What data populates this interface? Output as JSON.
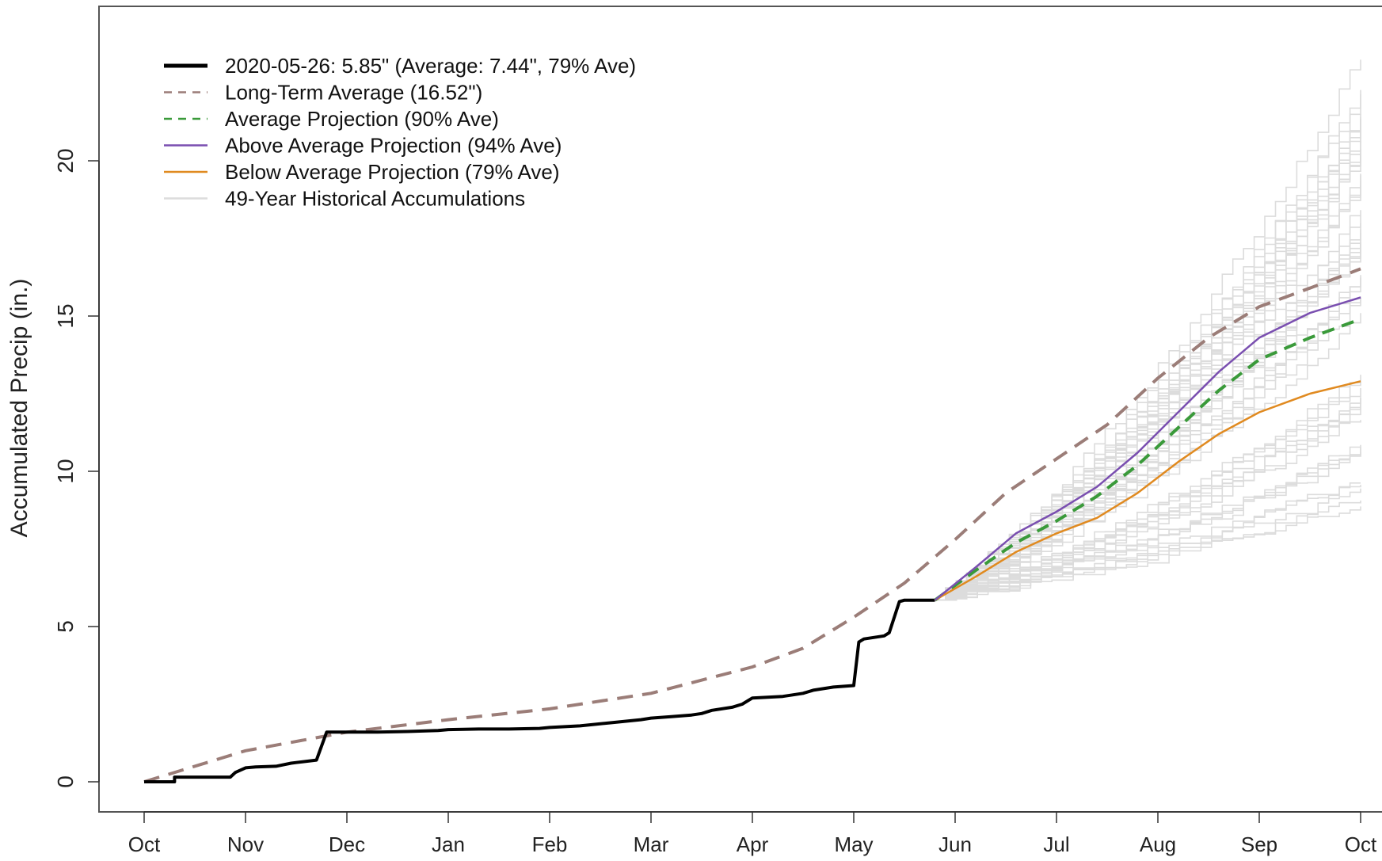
{
  "chart_data": {
    "type": "line",
    "title": "",
    "xlabel": "",
    "ylabel": "Accumulated Precip (in.)",
    "x_tick_labels": [
      "Oct",
      "Nov",
      "Dec",
      "Jan",
      "Feb",
      "Mar",
      "Apr",
      "May",
      "Jun",
      "Jul",
      "Aug",
      "Sep",
      "Oct"
    ],
    "y_ticks": [
      0,
      5,
      10,
      15,
      20
    ],
    "ylim": [
      -1,
      25
    ],
    "xlim_months": [
      -0.4,
      12.2
    ],
    "grid": false,
    "legend_position": "top-left",
    "legend": [
      {
        "label": "2020-05-26: 5.85\" (Average: 7.44\", 79% Ave)",
        "color": "#000000",
        "style": "solid-thick"
      },
      {
        "label": "Long-Term Average (16.52\")",
        "color": "#9b7d78",
        "style": "dashed"
      },
      {
        "label": "Average Projection (90% Ave)",
        "color": "#3a9a3a",
        "style": "dashed"
      },
      {
        "label": "Above Average Projection (94% Ave)",
        "color": "#7a4fb0",
        "style": "solid"
      },
      {
        "label": "Below Average Projection (79% Ave)",
        "color": "#e08a20",
        "style": "solid"
      },
      {
        "label": "49-Year Historical Accumulations",
        "color": "#dcdcdc",
        "style": "solid"
      }
    ],
    "series": [
      {
        "name": "2020-05-26: 5.85\" (Average: 7.44\", 79% Ave)",
        "color": "#000000",
        "x": [
          0.0,
          0.3,
          0.3,
          0.85,
          0.9,
          1.0,
          1.1,
          1.3,
          1.45,
          1.5,
          1.7,
          1.8,
          1.9,
          2.0,
          2.3,
          2.6,
          2.9,
          3.0,
          3.3,
          3.6,
          3.9,
          4.0,
          4.3,
          4.6,
          4.9,
          5.0,
          5.2,
          5.4,
          5.5,
          5.6,
          5.8,
          5.9,
          6.0,
          6.3,
          6.5,
          6.6,
          6.8,
          7.0,
          7.05,
          7.1,
          7.3,
          7.35,
          7.45,
          7.5,
          7.8
        ],
        "y": [
          0.0,
          0.0,
          0.15,
          0.15,
          0.3,
          0.45,
          0.48,
          0.5,
          0.6,
          0.62,
          0.7,
          1.6,
          1.6,
          1.6,
          1.6,
          1.62,
          1.65,
          1.68,
          1.7,
          1.7,
          1.72,
          1.75,
          1.8,
          1.9,
          2.0,
          2.05,
          2.1,
          2.15,
          2.2,
          2.3,
          2.4,
          2.5,
          2.7,
          2.75,
          2.85,
          2.95,
          3.05,
          3.1,
          4.5,
          4.6,
          4.7,
          4.8,
          5.8,
          5.85,
          5.85
        ]
      },
      {
        "name": "Long-Term Average (16.52\")",
        "color": "#9b7d78",
        "x": [
          0,
          1,
          2,
          3,
          4,
          5,
          6,
          6.5,
          7,
          7.5,
          8,
          8.5,
          9,
          9.5,
          10,
          10.5,
          11,
          11.5,
          12
        ],
        "y": [
          0,
          1.0,
          1.6,
          2.0,
          2.35,
          2.85,
          3.7,
          4.3,
          5.3,
          6.4,
          7.8,
          9.3,
          10.4,
          11.5,
          13.0,
          14.3,
          15.3,
          15.9,
          16.52
        ]
      },
      {
        "name": "Average Projection (90% Ave)",
        "color": "#3a9a3a",
        "x": [
          7.8,
          8.2,
          8.6,
          9.0,
          9.4,
          9.8,
          10.2,
          10.6,
          11.0,
          11.5,
          12.0
        ],
        "y": [
          5.85,
          6.8,
          7.7,
          8.4,
          9.2,
          10.2,
          11.4,
          12.6,
          13.6,
          14.3,
          14.9
        ]
      },
      {
        "name": "Above Average Projection (94% Ave)",
        "color": "#7a4fb0",
        "x": [
          7.8,
          8.2,
          8.6,
          9.0,
          9.4,
          9.8,
          10.2,
          10.6,
          11.0,
          11.5,
          12.0
        ],
        "y": [
          5.85,
          6.9,
          8.0,
          8.7,
          9.5,
          10.6,
          11.9,
          13.2,
          14.3,
          15.1,
          15.6
        ]
      },
      {
        "name": "Below Average Projection (79% Ave)",
        "color": "#e08a20",
        "x": [
          7.8,
          8.2,
          8.6,
          9.0,
          9.4,
          9.8,
          10.2,
          10.6,
          11.0,
          11.5,
          12.0
        ],
        "y": [
          5.85,
          6.6,
          7.4,
          8.0,
          8.5,
          9.3,
          10.3,
          11.2,
          11.9,
          12.5,
          12.9
        ]
      }
    ],
    "historical": {
      "name": "49-Year Historical Accumulations",
      "color": "#dcdcdc",
      "count": 49,
      "start_x": 7.8,
      "start_y": 5.85,
      "end_x": 12.0,
      "end_y_min": 9.0,
      "end_y_max": 23.5
    }
  }
}
